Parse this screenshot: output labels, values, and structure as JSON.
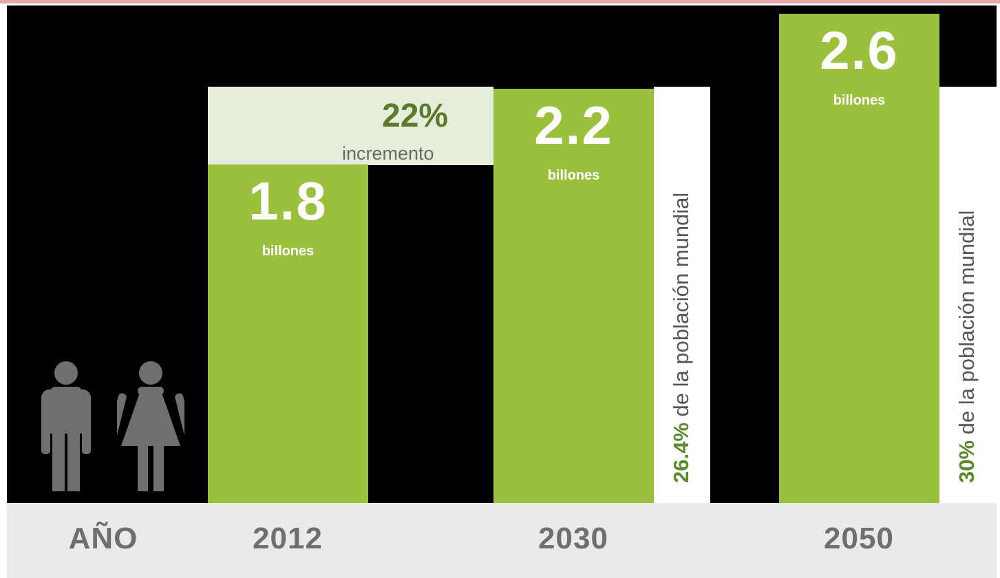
{
  "chart_data": {
    "type": "bar",
    "categories": [
      "2012",
      "2030",
      "2050"
    ],
    "values": [
      1.8,
      2.2,
      2.6
    ],
    "value_labels": [
      "1.8",
      "2.2",
      "2.6"
    ],
    "unit_label": "billones",
    "axis_label": "AÑO",
    "increase": {
      "pct": "22%",
      "label": "incremento"
    },
    "population_share": [
      {
        "category": "2030",
        "pct": "26.4%",
        "text": " de la población mundial"
      },
      {
        "category": "2050",
        "pct": "30%",
        "text": " de la población mundial"
      }
    ],
    "colors": {
      "bar": "#9bc13c",
      "background": "#000000",
      "axis_strip": "#eaeaea",
      "increase_band": "#e6eedb",
      "accent_text": "#5b7a2c",
      "figure": "#6f6f6f"
    },
    "icons": [
      "man-icon",
      "woman-icon"
    ]
  }
}
